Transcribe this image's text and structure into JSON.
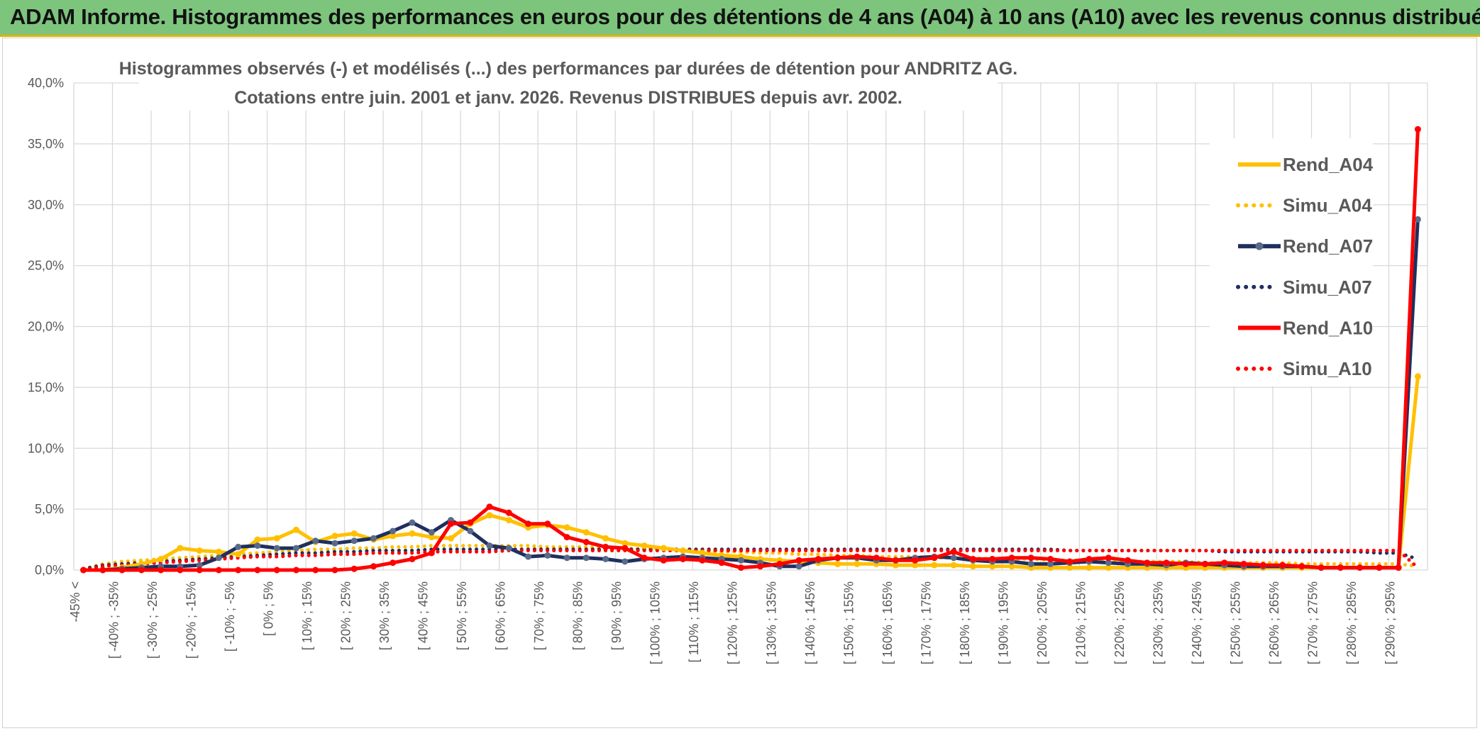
{
  "banner": {
    "title": "ADAM Informe. Histogrammes des performances en euros pour des détentions de 4 ans (A04) à 10 ans (A10) avec les revenus connus distribués"
  },
  "chart_data": {
    "type": "line",
    "title": "Histogrammes observés (-) et modélisés (...) des performances par durées de détention pour ANDRITZ AG.",
    "subtitle": "Cotations entre juin. 2001 et janv. 2026. Revenus DISTRIBUES depuis avr. 2002.",
    "xlabel": "",
    "ylabel": "",
    "ylim": [
      0,
      40
    ],
    "y_ticks": [
      "0,0%",
      "5,0%",
      "10,0%",
      "15,0%",
      "20,0%",
      "25,0%",
      "30,0%",
      "35,0%",
      "40,0%"
    ],
    "grid": true,
    "legend_position": "right",
    "x_tick_labels": [
      "-45% <",
      "[ -40% ; -35%",
      "[ -30% ; -25%",
      "[ -20% ; -15%",
      "[ -10% ; -5%",
      "[ 0% ; 5%",
      "[ 10% ; 15%",
      "[ 20% ; 25%",
      "[ 30% ; 35%",
      "[ 40% ; 45%",
      "[ 50% ; 55%",
      "[ 60% ; 65%",
      "[ 70% ; 75%",
      "[ 80% ; 85%",
      "[ 90% ; 95%",
      "[ 100% ; 105%",
      "[ 110% ; 115%",
      "[ 120% ; 125%",
      "[ 130% ; 135%",
      "[ 140% ; 145%",
      "[ 150% ; 155%",
      "[ 160% ; 165%",
      "[ 170% ; 175%",
      "[ 180% ; 185%",
      "[ 190% ; 195%",
      "[ 200% ; 205%",
      "[ 210% ; 215%",
      "[ 220% ; 225%",
      "[ 230% ; 235%",
      "[ 240% ; 245%",
      "[ 250% ; 255%",
      "[ 260% ; 265%",
      "[ 270% ; 275%",
      "[ 280% ; 285%",
      "[ 290% ; 295%"
    ],
    "n_categories": 70,
    "series": [
      {
        "name": "Rend_A04",
        "color": "#ffc000",
        "style": "solid",
        "values": [
          0.0,
          0.0,
          0.2,
          0.5,
          0.9,
          1.8,
          1.6,
          1.5,
          1.3,
          2.5,
          2.6,
          3.3,
          2.3,
          2.8,
          3.0,
          2.5,
          2.8,
          3.0,
          2.7,
          2.6,
          3.8,
          4.5,
          4.1,
          3.5,
          3.7,
          3.5,
          3.1,
          2.6,
          2.2,
          2.0,
          1.8,
          1.6,
          1.4,
          1.2,
          1.1,
          0.9,
          0.8,
          0.7,
          0.6,
          0.5,
          0.5,
          0.5,
          0.4,
          0.4,
          0.4,
          0.4,
          0.3,
          0.3,
          0.3,
          0.2,
          0.2,
          0.2,
          0.2,
          0.2,
          0.2,
          0.2,
          0.2,
          0.2,
          0.2,
          0.2,
          0.2,
          0.2,
          0.2,
          0.2,
          0.2,
          0.2,
          0.2,
          0.2,
          0.2,
          15.9
        ]
      },
      {
        "name": "Simu_A04",
        "color": "#ffc000",
        "style": "dotted",
        "values": [
          0.1,
          0.5,
          0.7,
          0.8,
          0.9,
          1.0,
          1.1,
          1.2,
          1.3,
          1.4,
          1.5,
          1.6,
          1.7,
          1.7,
          1.8,
          1.8,
          1.9,
          1.9,
          2.0,
          2.0,
          2.0,
          2.0,
          2.0,
          2.0,
          1.9,
          1.9,
          1.9,
          1.8,
          1.8,
          1.7,
          1.7,
          1.6,
          1.6,
          1.5,
          1.5,
          1.4,
          1.4,
          1.3,
          1.3,
          1.2,
          1.2,
          1.1,
          1.1,
          1.1,
          1.0,
          1.0,
          1.0,
          0.9,
          0.9,
          0.9,
          0.8,
          0.8,
          0.8,
          0.8,
          0.7,
          0.7,
          0.7,
          0.7,
          0.6,
          0.6,
          0.6,
          0.6,
          0.6,
          0.5,
          0.5,
          0.5,
          0.5,
          0.5,
          0.5,
          0.3
        ]
      },
      {
        "name": "Rend_A07",
        "color": "#1f2f5e",
        "style": "solid",
        "values": [
          0.0,
          0.0,
          0.1,
          0.2,
          0.3,
          0.3,
          0.4,
          1.0,
          1.9,
          2.0,
          1.8,
          1.8,
          2.4,
          2.2,
          2.4,
          2.6,
          3.2,
          3.9,
          3.1,
          4.1,
          3.2,
          2.0,
          1.8,
          1.1,
          1.2,
          1.0,
          1.0,
          0.9,
          0.7,
          0.9,
          1.0,
          1.1,
          1.0,
          0.9,
          0.8,
          0.6,
          0.3,
          0.3,
          0.8,
          1.0,
          1.0,
          0.8,
          0.8,
          1.0,
          1.1,
          1.0,
          0.8,
          0.7,
          0.7,
          0.5,
          0.5,
          0.6,
          0.7,
          0.6,
          0.5,
          0.5,
          0.4,
          0.6,
          0.5,
          0.4,
          0.3,
          0.3,
          0.3,
          0.3,
          0.2,
          0.2,
          0.2,
          0.2,
          0.2,
          28.8
        ]
      },
      {
        "name": "Simu_A07",
        "color": "#1f2f5e",
        "style": "dotted",
        "values": [
          0.1,
          0.4,
          0.5,
          0.6,
          0.7,
          0.8,
          0.9,
          1.0,
          1.1,
          1.2,
          1.3,
          1.4,
          1.4,
          1.5,
          1.5,
          1.6,
          1.6,
          1.6,
          1.7,
          1.7,
          1.7,
          1.7,
          1.7,
          1.7,
          1.7,
          1.7,
          1.7,
          1.7,
          1.7,
          1.7,
          1.7,
          1.7,
          1.7,
          1.7,
          1.7,
          1.7,
          1.7,
          1.7,
          1.7,
          1.7,
          1.7,
          1.7,
          1.7,
          1.7,
          1.7,
          1.7,
          1.7,
          1.7,
          1.7,
          1.7,
          1.7,
          1.6,
          1.6,
          1.6,
          1.6,
          1.6,
          1.6,
          1.6,
          1.6,
          1.5,
          1.5,
          1.5,
          1.5,
          1.5,
          1.5,
          1.5,
          1.5,
          1.4,
          1.4,
          0.9
        ]
      },
      {
        "name": "Rend_A10",
        "color": "#ff0000",
        "style": "solid",
        "values": [
          0.0,
          0.0,
          0.0,
          0.0,
          0.0,
          0.0,
          0.0,
          0.0,
          0.0,
          0.0,
          0.0,
          0.0,
          0.0,
          0.0,
          0.1,
          0.3,
          0.6,
          0.9,
          1.4,
          3.8,
          3.9,
          5.2,
          4.7,
          3.8,
          3.8,
          2.7,
          2.3,
          1.9,
          1.8,
          1.0,
          0.8,
          0.9,
          0.8,
          0.6,
          0.2,
          0.3,
          0.5,
          0.8,
          0.9,
          1.0,
          1.1,
          1.0,
          0.8,
          0.8,
          1.0,
          1.5,
          0.9,
          0.9,
          1.0,
          1.0,
          0.9,
          0.7,
          0.9,
          1.0,
          0.8,
          0.6,
          0.6,
          0.5,
          0.5,
          0.6,
          0.5,
          0.4,
          0.4,
          0.3,
          0.2,
          0.2,
          0.2,
          0.2,
          0.2,
          36.2
        ]
      },
      {
        "name": "Simu_A10",
        "color": "#ff0000",
        "style": "dotted",
        "values": [
          0.0,
          0.3,
          0.4,
          0.5,
          0.6,
          0.7,
          0.8,
          0.9,
          1.0,
          1.1,
          1.1,
          1.2,
          1.2,
          1.3,
          1.3,
          1.4,
          1.4,
          1.4,
          1.5,
          1.5,
          1.5,
          1.5,
          1.6,
          1.6,
          1.6,
          1.6,
          1.6,
          1.6,
          1.6,
          1.6,
          1.6,
          1.6,
          1.6,
          1.6,
          1.6,
          1.6,
          1.6,
          1.6,
          1.6,
          1.6,
          1.6,
          1.6,
          1.6,
          1.6,
          1.6,
          1.6,
          1.6,
          1.6,
          1.6,
          1.6,
          1.6,
          1.6,
          1.6,
          1.6,
          1.6,
          1.6,
          1.6,
          1.6,
          1.6,
          1.6,
          1.6,
          1.6,
          1.6,
          1.6,
          1.6,
          1.6,
          1.6,
          1.6,
          1.6,
          0.2
        ]
      }
    ]
  }
}
